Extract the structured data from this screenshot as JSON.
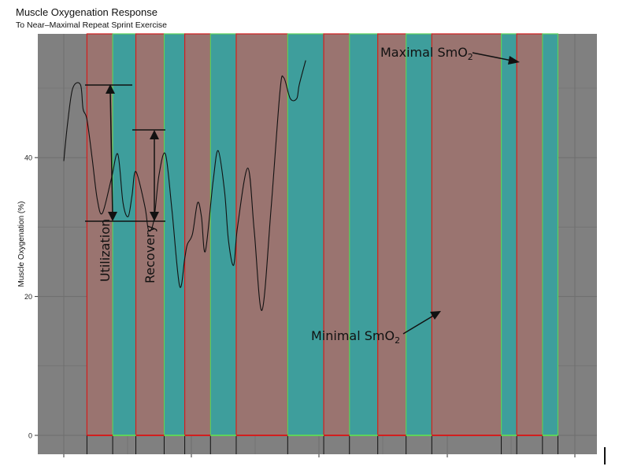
{
  "chart_data": {
    "type": "line",
    "title": "Muscle Oxygenation Response",
    "subtitle": "To Near–Maximal Repeat Sprint Exercise",
    "xlabel": "",
    "ylabel": "Muscle Oxygenation (%)",
    "ylim": [
      0,
      57.5
    ],
    "y_ticks": [
      0,
      20,
      40
    ],
    "grid": true,
    "series": [
      {
        "values_x": [
          0,
          1.5,
          3.5,
          6.5,
          7.5,
          9,
          11,
          13,
          15,
          18.5,
          21,
          23,
          25,
          26.5,
          28,
          31.5,
          33,
          35,
          37,
          39.5,
          42,
          45,
          47,
          48,
          50,
          52,
          53.5,
          55,
          58,
          60,
          62.5,
          64,
          66,
          67.5,
          71.5,
          74,
          77,
          80.5,
          84,
          85.5,
          88,
          90.5,
          91.5,
          94
        ],
        "values_y": [
          39.5,
          45,
          50,
          50.5,
          47,
          45.5,
          40,
          34,
          32,
          37,
          40.5,
          33.5,
          31.5,
          34.5,
          38,
          33,
          29.5,
          31,
          37.5,
          40.5,
          32.5,
          21.5,
          25.5,
          27.5,
          29,
          33.5,
          31.5,
          26.5,
          36.5,
          41,
          35,
          28,
          24.5,
          30,
          38.5,
          29.5,
          18,
          32.5,
          49.5,
          51.5,
          48.5,
          48.5,
          50.5,
          54
        ]
      }
    ],
    "phases": [
      {
        "type": "Sprint",
        "start": 9,
        "end": 19
      },
      {
        "type": "Rest",
        "start": 19,
        "end": 28
      },
      {
        "type": "Sprint",
        "start": 28,
        "end": 39
      },
      {
        "type": "Rest",
        "start": 39,
        "end": 47
      },
      {
        "type": "Sprint",
        "start": 47,
        "end": 57
      },
      {
        "type": "Rest",
        "start": 57,
        "end": 67
      },
      {
        "type": "Sprint",
        "start": 67,
        "end": 87
      },
      {
        "type": "Rest",
        "start": 87,
        "end": 101
      },
      {
        "type": "Sprint",
        "start": 101,
        "end": 111
      },
      {
        "type": "Rest",
        "start": 111,
        "end": 122
      },
      {
        "type": "Sprint",
        "start": 122,
        "end": 133
      },
      {
        "type": "Rest",
        "start": 133,
        "end": 143
      },
      {
        "type": "Sprint",
        "start": 143,
        "end": 170
      },
      {
        "type": "Rest",
        "start": 170,
        "end": 176
      },
      {
        "type": "Sprint",
        "start": 176,
        "end": 186
      },
      {
        "type": "Rest",
        "start": 186,
        "end": 192
      }
    ],
    "annotations": {
      "utilization": "Utilization",
      "recovery": "Recovery",
      "maximal_prefix": "Maximal SmO",
      "minimal_prefix": "Minimal SmO",
      "subscript": "2"
    },
    "colors": {
      "panel": "#808080",
      "grid": "#6e6e6e",
      "sprint_fill": "#9a7470",
      "rest_fill": "#3e9e9c",
      "red_border": "#d21e1e",
      "green_border": "#5fd25a",
      "line": "#111111"
    }
  }
}
